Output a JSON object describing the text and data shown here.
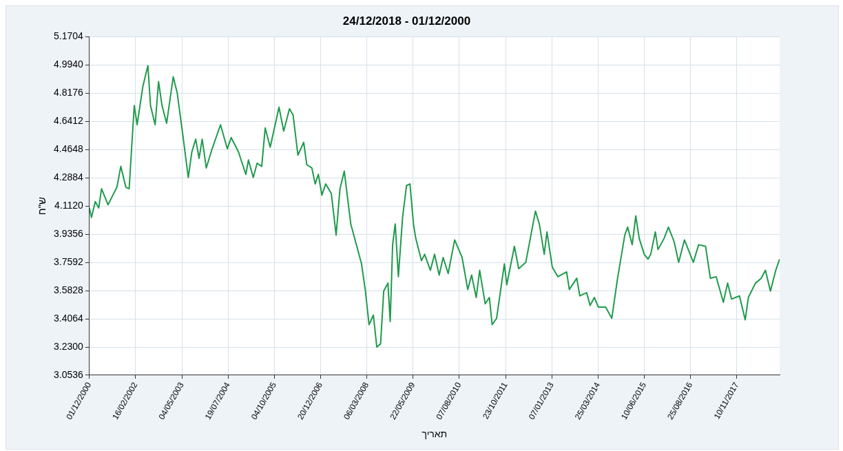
{
  "chart_data": {
    "type": "line",
    "title": "24/12/2018 - 01/12/2000",
    "xlabel": "תאריך",
    "ylabel": "ש\"ח",
    "xlim": [
      "2000-12-01",
      "2018-12-24"
    ],
    "xticks": [
      {
        "value": "2000-12-01",
        "label": "01/12/2000"
      },
      {
        "value": "2002-02-16",
        "label": "16/02/2002"
      },
      {
        "value": "2003-05-04",
        "label": "04/05/2003"
      },
      {
        "value": "2004-07-19",
        "label": "19/07/2004"
      },
      {
        "value": "2005-10-04",
        "label": "04/10/2005"
      },
      {
        "value": "2006-12-20",
        "label": "20/12/2006"
      },
      {
        "value": "2008-03-06",
        "label": "06/03/2008"
      },
      {
        "value": "2009-05-22",
        "label": "22/05/2009"
      },
      {
        "value": "2010-08-07",
        "label": "07/08/2010"
      },
      {
        "value": "2011-10-23",
        "label": "23/10/2011"
      },
      {
        "value": "2013-01-07",
        "label": "07/01/2013"
      },
      {
        "value": "2014-03-25",
        "label": "25/03/2014"
      },
      {
        "value": "2015-06-10",
        "label": "10/06/2015"
      },
      {
        "value": "2016-08-25",
        "label": "25/08/2016"
      },
      {
        "value": "2017-11-10",
        "label": "10/11/2017"
      }
    ],
    "ylim": [
      3.0536,
      5.1704
    ],
    "yticks": [
      3.0536,
      {
        "value": 3.23,
        "label": "3.2300"
      },
      3.4064,
      3.5828,
      3.7592,
      3.9356,
      {
        "value": 4.112,
        "label": "4.1120"
      },
      4.2884,
      4.4648,
      4.6412,
      4.8176,
      {
        "value": 4.994,
        "label": "4.9940"
      },
      5.1704
    ],
    "grid": true,
    "legend": false,
    "marker": "none",
    "line_style": "solid",
    "x": [
      "2000-12-01",
      "2000-12-20",
      "2001-01-26",
      "2001-02-28",
      "2001-03-27",
      "2001-05-28",
      "2001-08-21",
      "2001-09-27",
      "2001-11-14",
      "2001-12-16",
      "2002-01-08",
      "2002-02-03",
      "2002-03-02",
      "2002-04-26",
      "2002-06-13",
      "2002-07-08",
      "2002-08-21",
      "2002-09-23",
      "2002-10-26",
      "2002-12-09",
      "2003-02-10",
      "2003-03-20",
      "2003-05-14",
      "2003-07-04",
      "2003-08-07",
      "2003-09-13",
      "2003-10-15",
      "2003-11-14",
      "2003-12-23",
      "2004-02-17",
      "2004-05-07",
      "2004-07-11",
      "2004-08-17",
      "2004-10-26",
      "2005-01-04",
      "2005-01-29",
      "2005-03-16",
      "2005-04-22",
      "2005-06-05",
      "2005-07-08",
      "2005-08-25",
      "2005-11-17",
      "2006-01-01",
      "2006-02-25",
      "2006-04-01",
      "2006-05-17",
      "2006-07-11",
      "2006-08-10",
      "2006-09-27",
      "2006-10-29",
      "2006-11-28",
      "2007-01-01",
      "2007-02-07",
      "2007-04-01",
      "2007-05-17",
      "2007-06-23",
      "2007-08-03",
      "2007-10-04",
      "2007-12-05",
      "2008-01-15",
      "2008-02-21",
      "2008-03-27",
      "2008-05-07",
      "2008-06-09",
      "2008-07-15",
      "2008-08-14",
      "2008-09-23",
      "2008-10-15",
      "2008-11-07",
      "2008-12-02",
      "2009-01-01",
      "2009-02-10",
      "2009-03-20",
      "2009-04-22",
      "2009-05-25",
      "2009-06-16",
      "2009-08-10",
      "2009-09-09",
      "2009-11-03",
      "2009-12-13",
      "2010-01-26",
      "2010-03-05",
      "2010-04-22",
      "2010-06-23",
      "2010-09-02",
      "2010-10-26",
      "2010-12-02",
      "2011-01-15",
      "2011-02-17",
      "2011-04-11",
      "2011-05-21",
      "2011-06-16",
      "2011-07-29",
      "2011-10-11",
      "2011-11-03",
      "2012-01-15",
      "2012-02-25",
      "2012-05-03",
      "2012-08-03",
      "2012-09-09",
      "2012-10-26",
      "2012-11-21",
      "2013-01-11",
      "2013-03-05",
      "2013-05-28",
      "2013-06-23",
      "2013-09-02",
      "2013-10-01",
      "2013-12-05",
      "2014-01-08",
      "2014-02-17",
      "2014-03-27",
      "2014-06-05",
      "2014-08-03",
      "2014-09-27",
      "2014-12-05",
      "2015-01-01",
      "2015-02-14",
      "2015-03-20",
      "2015-04-22",
      "2015-06-09",
      "2015-07-15",
      "2015-08-10",
      "2015-09-23",
      "2015-10-19",
      "2015-12-16",
      "2016-01-26",
      "2016-03-20",
      "2016-05-03",
      "2016-06-27",
      "2016-09-20",
      "2016-11-10",
      "2017-01-15",
      "2017-03-02",
      "2017-04-26",
      "2017-07-04",
      "2017-08-14",
      "2017-09-20",
      "2017-12-05",
      "2018-01-29",
      "2018-02-28",
      "2018-05-07",
      "2018-07-01",
      "2018-08-10",
      "2018-09-27",
      "2018-11-17",
      "2018-12-24"
    ],
    "series": [
      {
        "color": "#1f9a4c",
        "values": [
          4.1,
          4.04,
          4.14,
          4.1,
          4.22,
          4.12,
          4.23,
          4.36,
          4.23,
          4.22,
          4.47,
          4.74,
          4.62,
          4.86,
          4.99,
          4.74,
          4.62,
          4.89,
          4.74,
          4.63,
          4.92,
          4.82,
          4.55,
          4.29,
          4.45,
          4.53,
          4.41,
          4.53,
          4.35,
          4.47,
          4.62,
          4.47,
          4.54,
          4.45,
          4.31,
          4.4,
          4.29,
          4.38,
          4.36,
          4.6,
          4.48,
          4.73,
          4.58,
          4.72,
          4.68,
          4.43,
          4.51,
          4.37,
          4.35,
          4.25,
          4.31,
          4.18,
          4.25,
          4.19,
          3.93,
          4.22,
          4.33,
          4.0,
          3.85,
          3.75,
          3.58,
          3.37,
          3.43,
          3.23,
          3.25,
          3.58,
          3.63,
          3.39,
          3.87,
          4.0,
          3.67,
          4.04,
          4.24,
          4.25,
          4.0,
          3.91,
          3.77,
          3.81,
          3.71,
          3.81,
          3.68,
          3.79,
          3.69,
          3.9,
          3.79,
          3.59,
          3.68,
          3.54,
          3.71,
          3.5,
          3.54,
          3.37,
          3.41,
          3.75,
          3.62,
          3.86,
          3.72,
          3.76,
          4.08,
          4.0,
          3.81,
          3.95,
          3.73,
          3.67,
          3.7,
          3.59,
          3.66,
          3.55,
          3.57,
          3.49,
          3.54,
          3.48,
          3.48,
          3.41,
          3.66,
          3.93,
          3.98,
          3.87,
          4.05,
          3.91,
          3.81,
          3.78,
          3.81,
          3.95,
          3.84,
          3.91,
          3.98,
          3.89,
          3.76,
          3.9,
          3.76,
          3.87,
          3.86,
          3.66,
          3.67,
          3.51,
          3.63,
          3.53,
          3.55,
          3.4,
          3.54,
          3.63,
          3.66,
          3.71,
          3.58,
          3.71,
          3.78
        ]
      }
    ]
  }
}
